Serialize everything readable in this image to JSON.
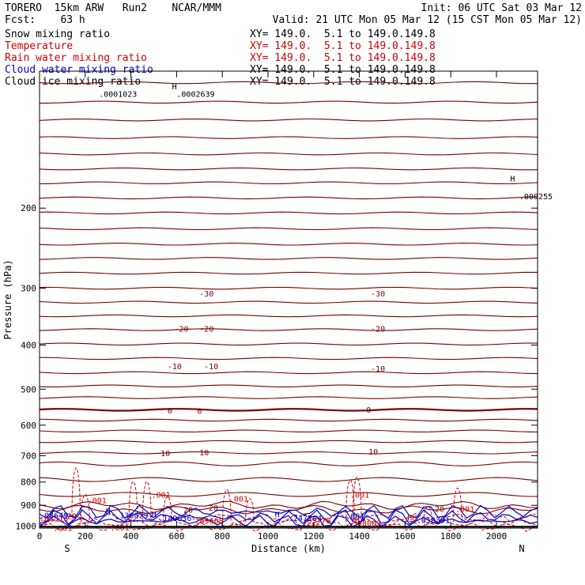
{
  "header": {
    "model": "TORERO  15km ARW   Run2    NCAR/MMM",
    "init": "Init: 06 UTC Sat 03 Mar 12",
    "fcst": "Fcst:    63 h",
    "valid": "Valid: 21 UTC Mon 05 Mar 12 (15 CST Mon 05 Mar 12)"
  },
  "fields": [
    {
      "name": "Snow mixing ratio",
      "xsec": "XY= 149.0.  5.1 to 149.0.149.8",
      "color": "#000000"
    },
    {
      "name": "Temperature",
      "xsec": "XY= 149.0.  5.1 to 149.0.149.8",
      "color": "#d40000"
    },
    {
      "name": "Rain water mixing ratio",
      "xsec": "XY= 149.0.  5.1 to 149.0.149.8",
      "color": "#d40000"
    },
    {
      "name": "Cloud water mixing ratio",
      "xsec": "XY= 149.0.  5.1 to 149.0.149.8",
      "color": "#0000c8"
    },
    {
      "name": "Cloud ice mixing ratio",
      "xsec": "XY= 149.0.  5.1 to 149.0.149.8",
      "color": "#000000"
    }
  ],
  "chart_data": {
    "type": "contour",
    "xlabel": "Distance (km)",
    "ylabel": "Pressure (hPa)",
    "xlim": [
      0,
      2180
    ],
    "ylim": [
      100,
      1010
    ],
    "y_log_scale": true,
    "xticks": [
      0,
      200,
      400,
      600,
      800,
      1000,
      1200,
      1400,
      1600,
      1800,
      2000
    ],
    "yticks": [
      200,
      300,
      400,
      500,
      600,
      700,
      800,
      900,
      1000
    ],
    "left_end_label": "S",
    "right_end_label": "N",
    "colors": {
      "temperature": "#7a0000",
      "rain": "#d40000",
      "cloud_water": "#0000c8",
      "ice": "#000000"
    },
    "temperature_isotherms_pressure": [
      106,
      117,
      128,
      140,
      152,
      164,
      176,
      190,
      205,
      222,
      240,
      258,
      278,
      300,
      322,
      345,
      370,
      398,
      428,
      460,
      492,
      522,
      555,
      585,
      618,
      652,
      690,
      730,
      790,
      852,
      900,
      920
    ],
    "temperature_labels": [
      {
        "text": "-30",
        "x": 700,
        "p": 308
      },
      {
        "text": "-30",
        "x": 1450,
        "p": 308
      },
      {
        "text": "-20",
        "x": 590,
        "p": 368
      },
      {
        "text": "-20",
        "x": 700,
        "p": 368
      },
      {
        "text": "-20",
        "x": 1450,
        "p": 368
      },
      {
        "text": "-10",
        "x": 560,
        "p": 445
      },
      {
        "text": "-10",
        "x": 720,
        "p": 445
      },
      {
        "text": "-10",
        "x": 1450,
        "p": 450
      },
      {
        "text": "0",
        "x": 560,
        "p": 556
      },
      {
        "text": "0",
        "x": 690,
        "p": 558
      },
      {
        "text": "0",
        "x": 1430,
        "p": 554
      },
      {
        "text": "10",
        "x": 530,
        "p": 690
      },
      {
        "text": "10",
        "x": 700,
        "p": 688
      },
      {
        "text": "10",
        "x": 1440,
        "p": 685
      },
      {
        "text": "20",
        "x": 120,
        "p": 950
      },
      {
        "text": "20",
        "x": 630,
        "p": 920
      },
      {
        "text": "20",
        "x": 740,
        "p": 910
      },
      {
        "text": "20",
        "x": 1730,
        "p": 915
      }
    ],
    "rain_labels": [
      {
        "text": ".001",
        "x": 210,
        "p": 876
      },
      {
        "text": ".001",
        "x": 490,
        "p": 852
      },
      {
        "text": ".001",
        "x": 830,
        "p": 870
      },
      {
        "text": ".001",
        "x": 1360,
        "p": 852
      },
      {
        "text": ".001",
        "x": 1820,
        "p": 916
      },
      {
        "text": ".001",
        "x": 310,
        "p": 1005
      },
      {
        "text": ".001",
        "x": 60,
        "p": 1007
      },
      {
        "text": ".01513",
        "x": 0,
        "p": 960
      },
      {
        "text": ".05608",
        "x": 680,
        "p": 972
      },
      {
        "text": ".05778",
        "x": 1150,
        "p": 970
      },
      {
        "text": ".08003",
        "x": 1370,
        "p": 984
      }
    ],
    "cloud_labels": [
      {
        "text": ".08649",
        "x": 0,
        "p": 945
      },
      {
        "text": ".138029",
        "x": 330,
        "p": 945
      },
      {
        "text": ".149636",
        "x": 520,
        "p": 958
      },
      {
        "text": ".247294",
        "x": 1090,
        "p": 958
      },
      {
        "text": ".001",
        "x": 1340,
        "p": 950
      },
      {
        "text": ".058391",
        "x": 1650,
        "p": 968
      }
    ],
    "ice_labels": [
      {
        "text": ".0002639",
        "x": 600,
        "p": 112
      },
      {
        "text": ".0001023",
        "x": 260,
        "p": 112
      },
      {
        "text": ".000255",
        "x": 2100,
        "p": 188
      }
    ],
    "highs": [
      {
        "text": "H",
        "x": 290,
        "p": 925,
        "color": "#0000c8"
      },
      {
        "text": "H",
        "x": 490,
        "p": 940,
        "color": "#0000c8"
      },
      {
        "text": "H",
        "x": 1030,
        "p": 940,
        "color": "#0000c8"
      },
      {
        "text": "H",
        "x": 1380,
        "p": 968,
        "color": "#d40000"
      },
      {
        "text": "HH",
        "x": 1610,
        "p": 956,
        "color": "#d40000"
      },
      {
        "text": "H",
        "x": 2060,
        "p": 172,
        "color": "#000000"
      },
      {
        "text": "H",
        "x": 580,
        "p": 108,
        "color": "#000000"
      }
    ],
    "rain_spikes": [
      {
        "x": 160,
        "top": 745
      },
      {
        "x": 200,
        "top": 852
      },
      {
        "x": 410,
        "top": 798
      },
      {
        "x": 470,
        "top": 798
      },
      {
        "x": 560,
        "top": 860
      },
      {
        "x": 820,
        "top": 832
      },
      {
        "x": 920,
        "top": 870
      },
      {
        "x": 1360,
        "top": 792
      },
      {
        "x": 1390,
        "top": 780
      },
      {
        "x": 1700,
        "top": 905
      },
      {
        "x": 1830,
        "top": 825
      }
    ]
  }
}
